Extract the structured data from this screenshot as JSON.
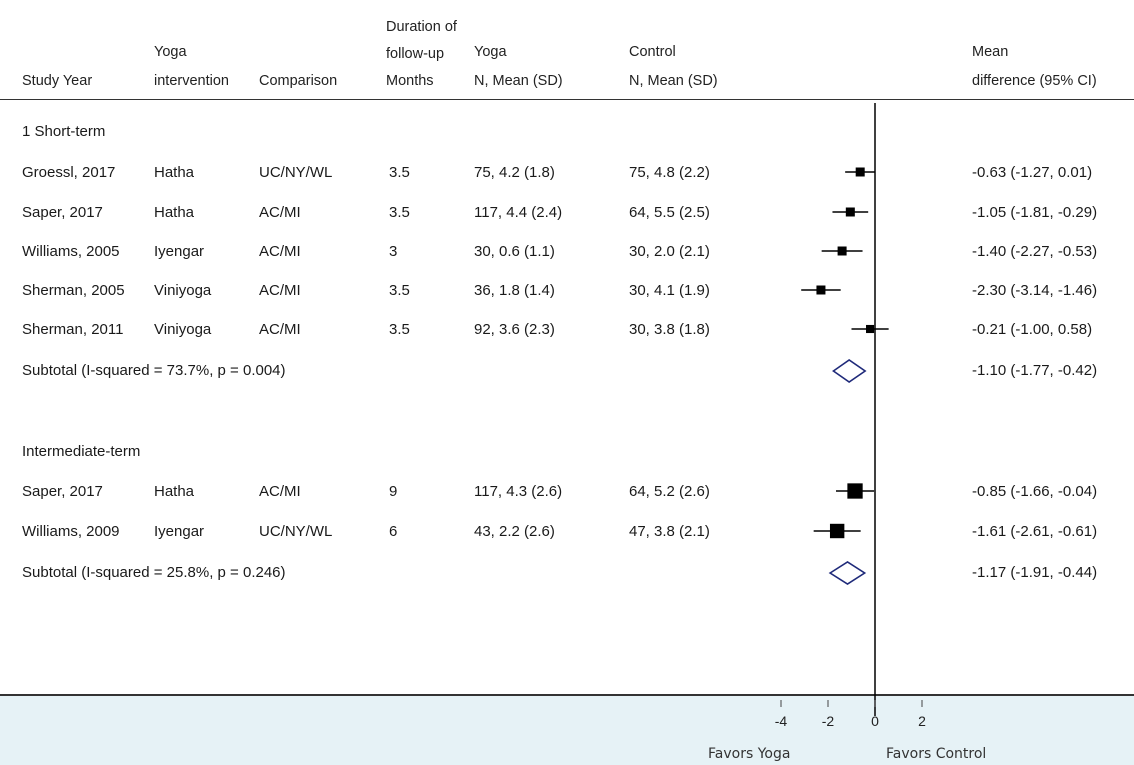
{
  "headers": {
    "study_year": "Study Year",
    "yoga_intervention": [
      "Yoga",
      "intervention"
    ],
    "comparison": "Comparison",
    "duration": [
      "Duration of",
      "follow-up",
      "Months"
    ],
    "yoga_n": [
      "Yoga",
      "N, Mean (SD)"
    ],
    "control_n": [
      "Control",
      "N, Mean (SD)"
    ],
    "mean_diff": [
      "Mean",
      "difference (95% CI)"
    ]
  },
  "groups": [
    {
      "label": "1 Short-term",
      "rows": [
        {
          "study": "Groessl, 2017",
          "intervention": "Hatha",
          "comparison": "UC/NY/WL",
          "months": "3.5",
          "yoga": "75, 4.2 (1.8)",
          "control": "75, 4.8 (2.2)",
          "ci_text": "-0.63 (-1.27, 0.01)",
          "est": -0.63,
          "lo": -1.27,
          "hi": 0.01,
          "weight": 1
        },
        {
          "study": "Saper, 2017",
          "intervention": "Hatha",
          "comparison": "AC/MI",
          "months": "3.5",
          "yoga": "117, 4.4 (2.4)",
          "control": "64, 5.5 (2.5)",
          "ci_text": "-1.05 (-1.81, -0.29)",
          "est": -1.05,
          "lo": -1.81,
          "hi": -0.29,
          "weight": 1
        },
        {
          "study": "Williams, 2005",
          "intervention": "Iyengar",
          "comparison": "AC/MI",
          "months": "3",
          "yoga": "30, 0.6 (1.1)",
          "control": "30, 2.0 (2.1)",
          "ci_text": "-1.40 (-2.27, -0.53)",
          "est": -1.4,
          "lo": -2.27,
          "hi": -0.53,
          "weight": 1
        },
        {
          "study": "Sherman, 2005",
          "intervention": "Viniyoga",
          "comparison": "AC/MI",
          "months": "3.5",
          "yoga": "36, 1.8 (1.4)",
          "control": "30, 4.1 (1.9)",
          "ci_text": "-2.30 (-3.14, -1.46)",
          "est": -2.3,
          "lo": -3.14,
          "hi": -1.46,
          "weight": 1
        },
        {
          "study": "Sherman, 2011",
          "intervention": "Viniyoga",
          "comparison": "AC/MI",
          "months": "3.5",
          "yoga": "92, 3.6 (2.3)",
          "control": "30, 3.8 (1.8)",
          "ci_text": "-0.21 (-1.00, 0.58)",
          "est": -0.21,
          "lo": -1.0,
          "hi": 0.58,
          "weight": 0.9
        }
      ],
      "subtotal": {
        "label": "Subtotal  (I-squared = 73.7%, p = 0.004)",
        "ci_text": "-1.10 (-1.77, -0.42)",
        "est": -1.1,
        "lo": -1.77,
        "hi": -0.42
      }
    },
    {
      "label": "Intermediate-term",
      "rows": [
        {
          "study": "Saper, 2017",
          "intervention": "Hatha",
          "comparison": "AC/MI",
          "months": "9",
          "yoga": "117, 4.3 (2.6)",
          "control": "64, 5.2 (2.6)",
          "ci_text": "-0.85 (-1.66, -0.04)",
          "est": -0.85,
          "lo": -1.66,
          "hi": -0.04,
          "weight": 1.7
        },
        {
          "study": "Williams, 2009",
          "intervention": "Iyengar",
          "comparison": "UC/NY/WL",
          "months": "6",
          "yoga": "43, 2.2 (2.6)",
          "control": "47, 3.8 (2.1)",
          "ci_text": "-1.61 (-2.61, -0.61)",
          "est": -1.61,
          "lo": -2.61,
          "hi": -0.61,
          "weight": 1.6
        }
      ],
      "subtotal": {
        "label": "Subtotal  (I-squared = 25.8%, p = 0.246)",
        "ci_text": "-1.17 (-1.91, -0.44)",
        "est": -1.17,
        "lo": -1.91,
        "hi": -0.44
      }
    }
  ],
  "chart_data": {
    "type": "forest",
    "x_ticks": [
      -4,
      -2,
      0,
      2
    ],
    "x_tick_labels": [
      "-4",
      "-2",
      "0",
      "2"
    ],
    "reference_line": 0,
    "favors_left": "Favors Yoga",
    "favors_right": "Favors Control"
  },
  "colors": {
    "diamond": "#1f2a7a",
    "marker": "#000000",
    "band": "#e6f2f6"
  }
}
